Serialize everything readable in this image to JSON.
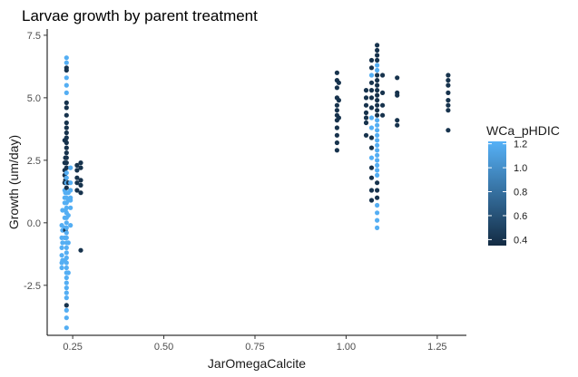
{
  "chart_data": {
    "type": "scatter",
    "title": "Larvae growth by parent treatment",
    "xlabel": "JarOmegaCalcite",
    "ylabel": "Growth (um/day)",
    "xlim": [
      0.18,
      1.33
    ],
    "ylim": [
      -4.5,
      7.75
    ],
    "x_ticks": [
      0.25,
      0.5,
      0.75,
      1.0,
      1.25
    ],
    "x_tick_labels": [
      "0.25",
      "0.50",
      "0.75",
      "1.00",
      "1.25"
    ],
    "y_ticks": [
      -2.5,
      0.0,
      2.5,
      5.0,
      7.5
    ],
    "y_tick_labels": [
      "-2.5",
      "0.0",
      "2.5",
      "5.0",
      "7.5"
    ],
    "grid": false,
    "legend": {
      "title": "WCa_pHDIC",
      "position": "right",
      "type": "colorbar",
      "range": [
        0.35,
        1.22
      ],
      "ticks": [
        1.2,
        1.0,
        0.8,
        0.6,
        0.4
      ],
      "tick_labels": [
        "1.2",
        "1.0",
        "0.8",
        "0.6",
        "0.4"
      ],
      "low_color": "#132B43",
      "high_color": "#56B1F7"
    },
    "points": [
      {
        "x": 0.22,
        "y": -0.1,
        "c": 1.2
      },
      {
        "x": 0.22,
        "y": -0.6,
        "c": 1.2
      },
      {
        "x": 0.22,
        "y": -1.0,
        "c": 1.2
      },
      {
        "x": 0.22,
        "y": -1.3,
        "c": 1.2
      },
      {
        "x": 0.22,
        "y": -1.6,
        "c": 1.2
      },
      {
        "x": 0.22,
        "y": -1.8,
        "c": 1.2
      },
      {
        "x": 0.222,
        "y": 0.5,
        "c": 1.2
      },
      {
        "x": 0.222,
        "y": -0.3,
        "c": 1.2
      },
      {
        "x": 0.222,
        "y": -0.8,
        "c": 1.2
      },
      {
        "x": 0.222,
        "y": -1.5,
        "c": 1.2
      },
      {
        "x": 0.228,
        "y": 3.3,
        "c": 0.4
      },
      {
        "x": 0.228,
        "y": 2.4,
        "c": 0.4
      },
      {
        "x": 0.228,
        "y": 2.1,
        "c": 0.4
      },
      {
        "x": 0.228,
        "y": 1.9,
        "c": 0.4
      },
      {
        "x": 0.228,
        "y": 1.6,
        "c": 0.4
      },
      {
        "x": 0.228,
        "y": 1.3,
        "c": 1.2
      },
      {
        "x": 0.228,
        "y": 1.0,
        "c": 1.2
      },
      {
        "x": 0.228,
        "y": 0.8,
        "c": 1.2
      },
      {
        "x": 0.228,
        "y": 0.2,
        "c": 1.2
      },
      {
        "x": 0.228,
        "y": -0.2,
        "c": 1.2
      },
      {
        "x": 0.228,
        "y": -0.6,
        "c": 1.2
      },
      {
        "x": 0.228,
        "y": -1.5,
        "c": 1.2
      },
      {
        "x": 0.23,
        "y": 3.3,
        "c": 0.4
      },
      {
        "x": 0.23,
        "y": 2.6,
        "c": 0.4
      },
      {
        "x": 0.23,
        "y": 1.7,
        "c": 0.4
      },
      {
        "x": 0.23,
        "y": 1.2,
        "c": 1.2
      },
      {
        "x": 0.23,
        "y": 0.5,
        "c": 1.2
      },
      {
        "x": 0.23,
        "y": -0.3,
        "c": 0.4
      },
      {
        "x": 0.233,
        "y": 6.6,
        "c": 1.2
      },
      {
        "x": 0.233,
        "y": 6.4,
        "c": 1.2
      },
      {
        "x": 0.233,
        "y": 6.2,
        "c": 0.4
      },
      {
        "x": 0.233,
        "y": 6.1,
        "c": 0.4
      },
      {
        "x": 0.233,
        "y": 5.8,
        "c": 1.2
      },
      {
        "x": 0.233,
        "y": 5.5,
        "c": 1.2
      },
      {
        "x": 0.233,
        "y": 5.2,
        "c": 1.2
      },
      {
        "x": 0.233,
        "y": 4.8,
        "c": 0.4
      },
      {
        "x": 0.233,
        "y": 4.6,
        "c": 0.4
      },
      {
        "x": 0.233,
        "y": 4.3,
        "c": 0.4
      },
      {
        "x": 0.233,
        "y": 4.0,
        "c": 0.4
      },
      {
        "x": 0.233,
        "y": 3.8,
        "c": 0.4
      },
      {
        "x": 0.233,
        "y": 3.6,
        "c": 0.4
      },
      {
        "x": 0.233,
        "y": 3.4,
        "c": 0.4
      },
      {
        "x": 0.233,
        "y": 3.2,
        "c": 0.4
      },
      {
        "x": 0.233,
        "y": 3.0,
        "c": 0.4
      },
      {
        "x": 0.233,
        "y": 2.8,
        "c": 0.4
      },
      {
        "x": 0.233,
        "y": 2.6,
        "c": 0.4
      },
      {
        "x": 0.233,
        "y": 2.4,
        "c": 0.4
      },
      {
        "x": 0.233,
        "y": 2.2,
        "c": 0.4
      },
      {
        "x": 0.233,
        "y": 2.0,
        "c": 1.2
      },
      {
        "x": 0.233,
        "y": 1.8,
        "c": 1.2
      },
      {
        "x": 0.233,
        "y": 1.6,
        "c": 1.2
      },
      {
        "x": 0.233,
        "y": 1.4,
        "c": 0.4
      },
      {
        "x": 0.233,
        "y": 1.2,
        "c": 1.2
      },
      {
        "x": 0.233,
        "y": 1.0,
        "c": 1.2
      },
      {
        "x": 0.233,
        "y": 0.8,
        "c": 1.2
      },
      {
        "x": 0.233,
        "y": 0.6,
        "c": 1.2
      },
      {
        "x": 0.233,
        "y": 0.4,
        "c": 1.2
      },
      {
        "x": 0.233,
        "y": 0.2,
        "c": 1.2
      },
      {
        "x": 0.233,
        "y": 0.0,
        "c": 1.2
      },
      {
        "x": 0.233,
        "y": -0.2,
        "c": 1.2
      },
      {
        "x": 0.233,
        "y": -0.4,
        "c": 1.2
      },
      {
        "x": 0.233,
        "y": -0.6,
        "c": 1.2
      },
      {
        "x": 0.233,
        "y": -0.8,
        "c": 1.2
      },
      {
        "x": 0.233,
        "y": -1.0,
        "c": 1.2
      },
      {
        "x": 0.233,
        "y": -1.2,
        "c": 1.2
      },
      {
        "x": 0.233,
        "y": -1.4,
        "c": 1.2
      },
      {
        "x": 0.233,
        "y": -1.6,
        "c": 1.2
      },
      {
        "x": 0.233,
        "y": -1.8,
        "c": 1.2
      },
      {
        "x": 0.233,
        "y": -2.0,
        "c": 1.2
      },
      {
        "x": 0.233,
        "y": -2.2,
        "c": 1.2
      },
      {
        "x": 0.233,
        "y": -2.4,
        "c": 1.2
      },
      {
        "x": 0.233,
        "y": -2.6,
        "c": 1.2
      },
      {
        "x": 0.233,
        "y": -2.8,
        "c": 1.2
      },
      {
        "x": 0.233,
        "y": -3.0,
        "c": 1.2
      },
      {
        "x": 0.233,
        "y": -3.3,
        "c": 0.4
      },
      {
        "x": 0.233,
        "y": -3.5,
        "c": 1.2
      },
      {
        "x": 0.233,
        "y": -3.8,
        "c": 1.2
      },
      {
        "x": 0.233,
        "y": -4.2,
        "c": 1.2
      },
      {
        "x": 0.238,
        "y": 1.6,
        "c": 0.4
      },
      {
        "x": 0.238,
        "y": 1.2,
        "c": 1.2
      },
      {
        "x": 0.238,
        "y": 0.9,
        "c": 1.2
      },
      {
        "x": 0.238,
        "y": 0.3,
        "c": 1.2
      },
      {
        "x": 0.238,
        "y": -0.8,
        "c": 1.2
      },
      {
        "x": 0.238,
        "y": -2.0,
        "c": 1.2
      },
      {
        "x": 0.244,
        "y": 2.2,
        "c": 1.2
      },
      {
        "x": 0.244,
        "y": 1.6,
        "c": 1.2
      },
      {
        "x": 0.244,
        "y": 1.3,
        "c": 1.2
      },
      {
        "x": 0.244,
        "y": 1.0,
        "c": 1.2
      },
      {
        "x": 0.244,
        "y": 0.6,
        "c": 1.2
      },
      {
        "x": 0.244,
        "y": -0.1,
        "c": 1.2
      },
      {
        "x": 0.244,
        "y": 0.9,
        "c": 1.2
      },
      {
        "x": 0.262,
        "y": 2.3,
        "c": 0.4
      },
      {
        "x": 0.262,
        "y": 2.1,
        "c": 0.4
      },
      {
        "x": 0.262,
        "y": 1.8,
        "c": 0.4
      },
      {
        "x": 0.262,
        "y": 1.6,
        "c": 0.4
      },
      {
        "x": 0.262,
        "y": 1.3,
        "c": 0.4
      },
      {
        "x": 0.272,
        "y": 2.4,
        "c": 0.4
      },
      {
        "x": 0.272,
        "y": 2.2,
        "c": 0.4
      },
      {
        "x": 0.272,
        "y": 1.7,
        "c": 0.4
      },
      {
        "x": 0.272,
        "y": 1.5,
        "c": 0.4
      },
      {
        "x": 0.272,
        "y": 1.2,
        "c": 0.4
      },
      {
        "x": 0.272,
        "y": -1.1,
        "c": 0.4
      },
      {
        "x": 0.975,
        "y": 6.0,
        "c": 0.4
      },
      {
        "x": 0.975,
        "y": 5.7,
        "c": 0.4
      },
      {
        "x": 0.975,
        "y": 5.4,
        "c": 0.4
      },
      {
        "x": 0.975,
        "y": 5.0,
        "c": 0.4
      },
      {
        "x": 0.975,
        "y": 4.7,
        "c": 0.4
      },
      {
        "x": 0.975,
        "y": 4.5,
        "c": 0.4
      },
      {
        "x": 0.975,
        "y": 4.3,
        "c": 0.4
      },
      {
        "x": 0.975,
        "y": 4.1,
        "c": 0.4
      },
      {
        "x": 0.975,
        "y": 3.8,
        "c": 0.4
      },
      {
        "x": 0.975,
        "y": 3.5,
        "c": 0.4
      },
      {
        "x": 0.975,
        "y": 3.2,
        "c": 0.4
      },
      {
        "x": 0.975,
        "y": 2.9,
        "c": 0.4
      },
      {
        "x": 0.98,
        "y": 5.6,
        "c": 0.4
      },
      {
        "x": 0.98,
        "y": 4.9,
        "c": 0.4
      },
      {
        "x": 0.98,
        "y": 4.2,
        "c": 0.4
      },
      {
        "x": 1.055,
        "y": 5.3,
        "c": 0.4
      },
      {
        "x": 1.055,
        "y": 5.0,
        "c": 0.4
      },
      {
        "x": 1.055,
        "y": 4.7,
        "c": 0.4
      },
      {
        "x": 1.055,
        "y": 4.4,
        "c": 0.4
      },
      {
        "x": 1.055,
        "y": 4.2,
        "c": 0.4
      },
      {
        "x": 1.055,
        "y": 4.0,
        "c": 0.4
      },
      {
        "x": 1.055,
        "y": 3.5,
        "c": 0.4
      },
      {
        "x": 1.07,
        "y": 6.5,
        "c": 0.4
      },
      {
        "x": 1.07,
        "y": 6.2,
        "c": 0.4
      },
      {
        "x": 1.07,
        "y": 5.9,
        "c": 1.2
      },
      {
        "x": 1.07,
        "y": 5.6,
        "c": 0.4
      },
      {
        "x": 1.07,
        "y": 5.3,
        "c": 0.4
      },
      {
        "x": 1.07,
        "y": 5.0,
        "c": 0.4
      },
      {
        "x": 1.07,
        "y": 4.6,
        "c": 0.4
      },
      {
        "x": 1.07,
        "y": 4.2,
        "c": 1.2
      },
      {
        "x": 1.07,
        "y": 3.8,
        "c": 1.2
      },
      {
        "x": 1.07,
        "y": 3.4,
        "c": 0.4
      },
      {
        "x": 1.07,
        "y": 3.0,
        "c": 0.4
      },
      {
        "x": 1.07,
        "y": 2.6,
        "c": 1.2
      },
      {
        "x": 1.07,
        "y": 2.2,
        "c": 0.4
      },
      {
        "x": 1.07,
        "y": 1.8,
        "c": 0.4
      },
      {
        "x": 1.07,
        "y": 1.3,
        "c": 0.4
      },
      {
        "x": 1.07,
        "y": 0.9,
        "c": 0.4
      },
      {
        "x": 1.085,
        "y": 7.1,
        "c": 0.4
      },
      {
        "x": 1.085,
        "y": 6.9,
        "c": 0.4
      },
      {
        "x": 1.085,
        "y": 6.7,
        "c": 0.4
      },
      {
        "x": 1.085,
        "y": 6.5,
        "c": 0.4
      },
      {
        "x": 1.085,
        "y": 6.3,
        "c": 1.2
      },
      {
        "x": 1.085,
        "y": 6.1,
        "c": 1.2
      },
      {
        "x": 1.085,
        "y": 5.9,
        "c": 0.4
      },
      {
        "x": 1.085,
        "y": 5.7,
        "c": 0.4
      },
      {
        "x": 1.085,
        "y": 5.5,
        "c": 0.4
      },
      {
        "x": 1.085,
        "y": 5.3,
        "c": 0.4
      },
      {
        "x": 1.085,
        "y": 5.1,
        "c": 0.4
      },
      {
        "x": 1.085,
        "y": 4.9,
        "c": 0.4
      },
      {
        "x": 1.085,
        "y": 4.7,
        "c": 0.4
      },
      {
        "x": 1.085,
        "y": 4.5,
        "c": 0.4
      },
      {
        "x": 1.085,
        "y": 4.3,
        "c": 0.4
      },
      {
        "x": 1.085,
        "y": 4.1,
        "c": 1.2
      },
      {
        "x": 1.085,
        "y": 3.9,
        "c": 1.2
      },
      {
        "x": 1.085,
        "y": 3.7,
        "c": 1.2
      },
      {
        "x": 1.085,
        "y": 3.5,
        "c": 1.2
      },
      {
        "x": 1.085,
        "y": 3.3,
        "c": 1.2
      },
      {
        "x": 1.085,
        "y": 3.1,
        "c": 1.2
      },
      {
        "x": 1.085,
        "y": 2.9,
        "c": 1.2
      },
      {
        "x": 1.085,
        "y": 2.7,
        "c": 1.2
      },
      {
        "x": 1.085,
        "y": 2.5,
        "c": 1.2
      },
      {
        "x": 1.085,
        "y": 2.3,
        "c": 1.2
      },
      {
        "x": 1.085,
        "y": 2.1,
        "c": 1.2
      },
      {
        "x": 1.085,
        "y": 1.9,
        "c": 1.2
      },
      {
        "x": 1.085,
        "y": 1.6,
        "c": 0.4
      },
      {
        "x": 1.085,
        "y": 1.3,
        "c": 0.4
      },
      {
        "x": 1.085,
        "y": 1.0,
        "c": 0.4
      },
      {
        "x": 1.085,
        "y": 0.7,
        "c": 1.2
      },
      {
        "x": 1.085,
        "y": 0.4,
        "c": 1.2
      },
      {
        "x": 1.085,
        "y": 0.1,
        "c": 1.2
      },
      {
        "x": 1.085,
        "y": -0.2,
        "c": 1.2
      },
      {
        "x": 1.1,
        "y": 5.9,
        "c": 0.4
      },
      {
        "x": 1.1,
        "y": 5.2,
        "c": 0.4
      },
      {
        "x": 1.1,
        "y": 4.7,
        "c": 0.4
      },
      {
        "x": 1.1,
        "y": 4.3,
        "c": 0.4
      },
      {
        "x": 1.14,
        "y": 5.8,
        "c": 0.4
      },
      {
        "x": 1.14,
        "y": 5.2,
        "c": 0.4
      },
      {
        "x": 1.14,
        "y": 5.1,
        "c": 0.4
      },
      {
        "x": 1.14,
        "y": 4.1,
        "c": 0.4
      },
      {
        "x": 1.14,
        "y": 3.9,
        "c": 0.4
      },
      {
        "x": 1.28,
        "y": 5.9,
        "c": 0.4
      },
      {
        "x": 1.28,
        "y": 5.7,
        "c": 0.4
      },
      {
        "x": 1.28,
        "y": 5.5,
        "c": 0.4
      },
      {
        "x": 1.28,
        "y": 5.2,
        "c": 0.4
      },
      {
        "x": 1.28,
        "y": 4.9,
        "c": 0.4
      },
      {
        "x": 1.28,
        "y": 4.7,
        "c": 0.4
      },
      {
        "x": 1.28,
        "y": 4.5,
        "c": 0.4
      },
      {
        "x": 1.28,
        "y": 3.7,
        "c": 0.4
      }
    ]
  }
}
